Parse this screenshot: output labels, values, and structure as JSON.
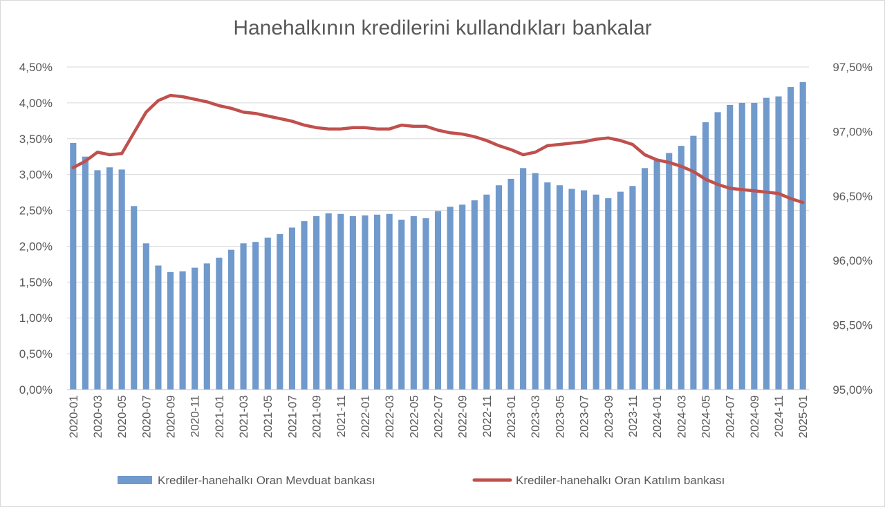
{
  "chart_data": {
    "type": "bar",
    "title": "Hanehalkının kredilerini kullandıkları bankalar",
    "x": [
      "2020-01",
      "2020-02",
      "2020-03",
      "2020-04",
      "2020-05",
      "2020-06",
      "2020-07",
      "2020-08",
      "2020-09",
      "2020-10",
      "2020-11",
      "2020-12",
      "2021-01",
      "2021-02",
      "2021-03",
      "2021-04",
      "2021-05",
      "2021-06",
      "2021-07",
      "2021-08",
      "2021-09",
      "2021-10",
      "2021-11",
      "2021-12",
      "2022-01",
      "2022-02",
      "2022-03",
      "2022-04",
      "2022-05",
      "2022-06",
      "2022-07",
      "2022-08",
      "2022-09",
      "2022-10",
      "2022-11",
      "2022-12",
      "2023-01",
      "2023-02",
      "2023-03",
      "2023-04",
      "2023-05",
      "2023-06",
      "2023-07",
      "2023-08",
      "2023-09",
      "2023-10",
      "2023-11",
      "2023-12",
      "2024-01",
      "2024-02",
      "2024-03",
      "2024-04",
      "2024-05",
      "2024-06",
      "2024-07",
      "2024-08",
      "2024-09",
      "2024-10",
      "2024-11",
      "2024-12",
      "2025-01"
    ],
    "x_tick_labels": [
      "2020-01",
      "2020-03",
      "2020-05",
      "2020-07",
      "2020-09",
      "2020-11",
      "2021-01",
      "2021-03",
      "2021-05",
      "2021-07",
      "2021-09",
      "2021-11",
      "2022-01",
      "2022-03",
      "2022-05",
      "2022-07",
      "2022-09",
      "2022-11",
      "2023-01",
      "2023-03",
      "2023-05",
      "2023-07",
      "2023-09",
      "2023-11",
      "2024-01",
      "2024-03",
      "2024-05",
      "2024-07",
      "2024-09",
      "2024-11",
      "2025-01"
    ],
    "series": [
      {
        "name": "Krediler-hanehalkı Oran Mevduat bankası",
        "type": "bar",
        "axis": "left",
        "color": "#7099cc",
        "values": [
          3.44,
          3.25,
          3.06,
          3.1,
          3.07,
          2.56,
          2.04,
          1.73,
          1.64,
          1.65,
          1.7,
          1.76,
          1.84,
          1.95,
          2.04,
          2.06,
          2.12,
          2.17,
          2.26,
          2.35,
          2.42,
          2.46,
          2.45,
          2.42,
          2.43,
          2.44,
          2.45,
          2.37,
          2.42,
          2.39,
          2.49,
          2.55,
          2.58,
          2.64,
          2.72,
          2.85,
          2.94,
          3.09,
          3.02,
          2.89,
          2.85,
          2.8,
          2.78,
          2.72,
          2.67,
          2.76,
          2.84,
          3.09,
          3.2,
          3.3,
          3.4,
          3.54,
          3.73,
          3.87,
          3.97,
          4.0,
          4.0,
          4.07,
          4.09,
          4.22,
          4.29
        ]
      },
      {
        "name": "Krediler-hanehalkı Oran Katılım bankası",
        "type": "line",
        "axis": "right",
        "color": "#c0504d",
        "values": [
          96.72,
          96.77,
          96.84,
          96.82,
          96.83,
          96.99,
          97.15,
          97.24,
          97.28,
          97.27,
          97.25,
          97.23,
          97.2,
          97.18,
          97.15,
          97.14,
          97.12,
          97.1,
          97.08,
          97.05,
          97.03,
          97.02,
          97.02,
          97.03,
          97.03,
          97.02,
          97.02,
          97.05,
          97.04,
          97.04,
          97.01,
          96.99,
          96.98,
          96.96,
          96.93,
          96.89,
          96.86,
          96.82,
          96.84,
          96.89,
          96.9,
          96.91,
          96.92,
          96.94,
          96.95,
          96.93,
          96.9,
          96.82,
          96.78,
          96.76,
          96.73,
          96.69,
          96.63,
          96.59,
          96.56,
          96.55,
          96.54,
          96.53,
          96.52,
          96.48,
          96.45
        ]
      }
    ],
    "y_left": {
      "min": 0,
      "max": 4.5,
      "step": 0.5,
      "tick_labels": [
        "0,00%",
        "0,50%",
        "1,00%",
        "1,50%",
        "2,00%",
        "2,50%",
        "3,00%",
        "3,50%",
        "4,00%",
        "4,50%"
      ]
    },
    "y_right": {
      "min": 95.0,
      "max": 97.5,
      "step": 0.5,
      "tick_labels": [
        "95,00%",
        "95,50%",
        "96,00%",
        "96,50%",
        "97,00%",
        "97,50%"
      ]
    },
    "grid": true,
    "legend": "bottom"
  }
}
